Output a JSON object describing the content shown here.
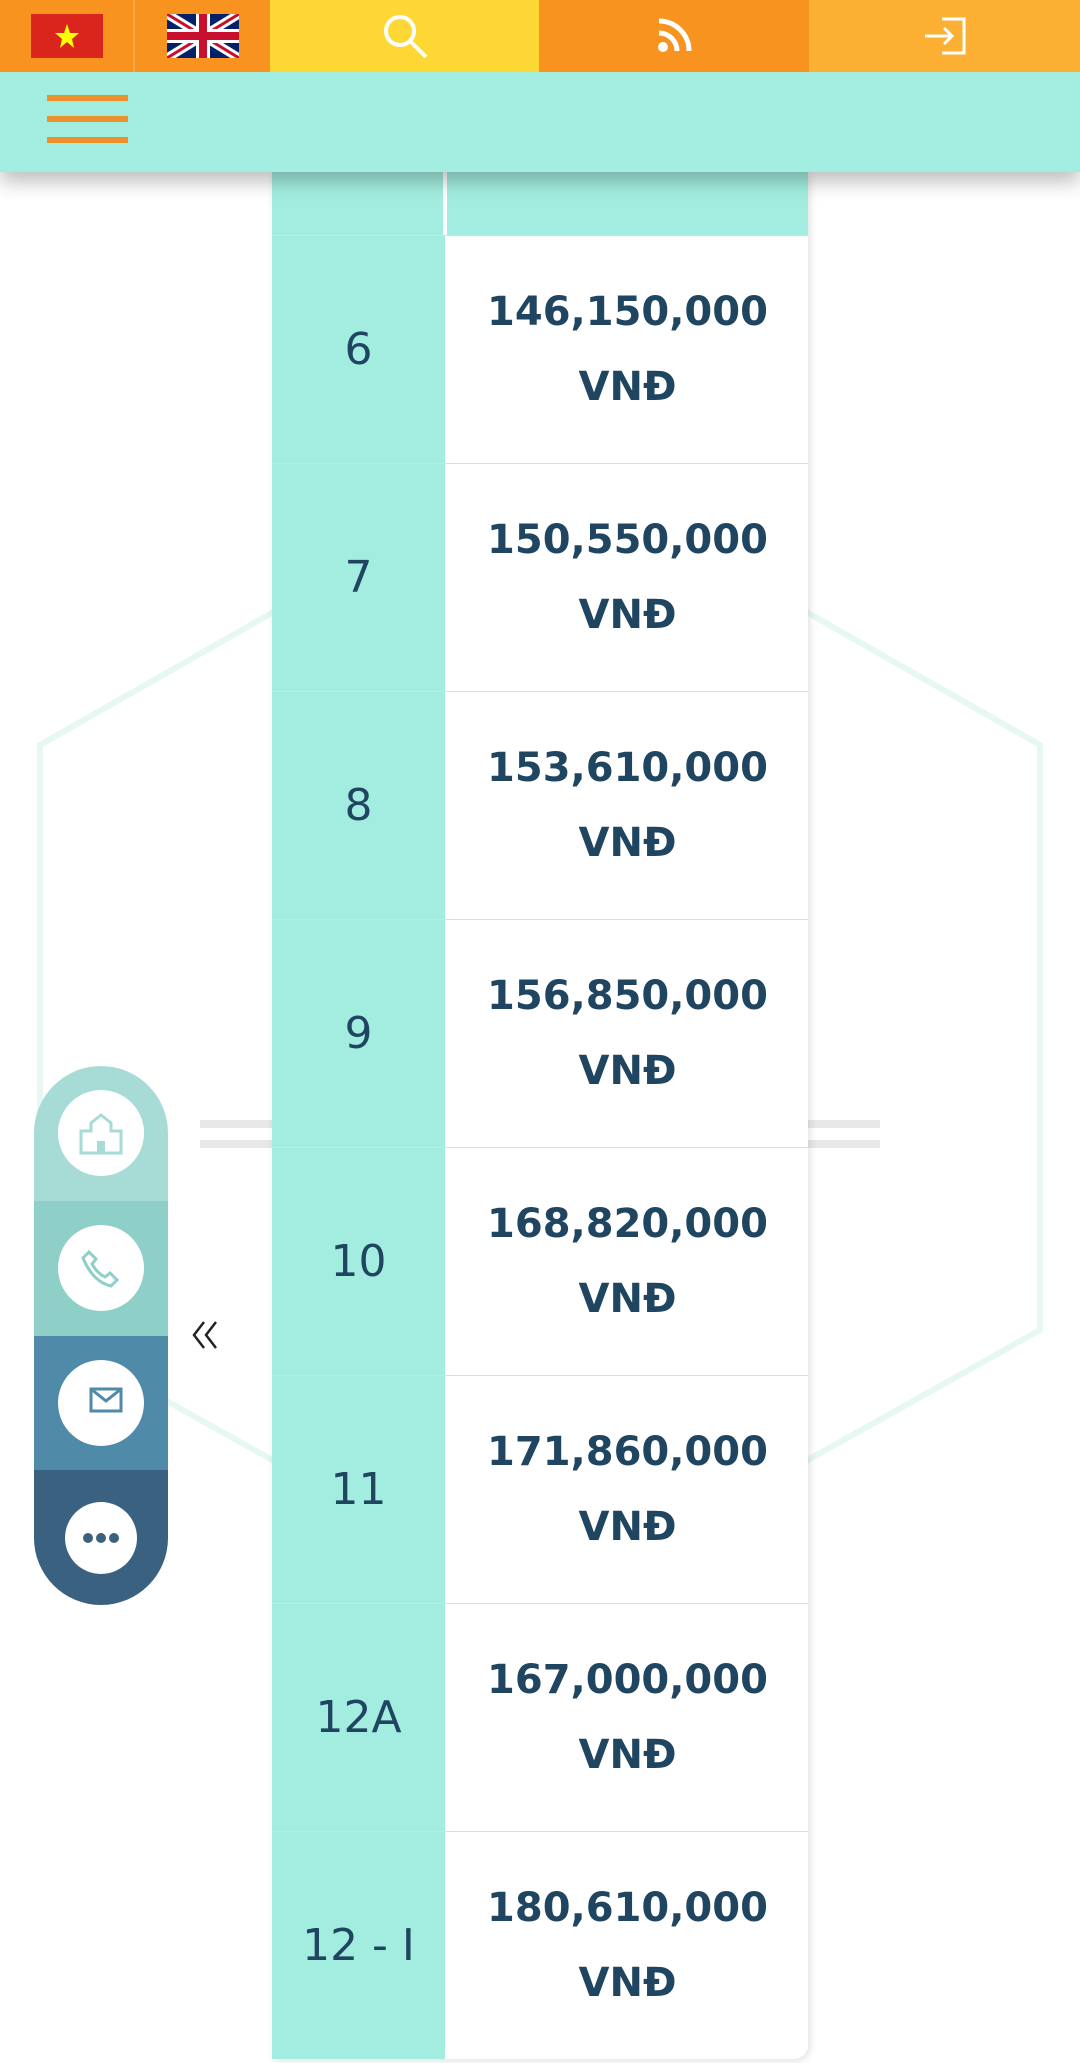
{
  "table": {
    "rows": [
      {
        "grade": "6",
        "fee": "146,150,000 VNĐ"
      },
      {
        "grade": "7",
        "fee": "150,550,000 VNĐ"
      },
      {
        "grade": "8",
        "fee": "153,610,000 VNĐ"
      },
      {
        "grade": "9",
        "fee": "156,850,000 VNĐ"
      },
      {
        "grade": "10",
        "fee": "168,820,000 VNĐ"
      },
      {
        "grade": "11",
        "fee": "171,860,000 VNĐ"
      },
      {
        "grade": "12A",
        "fee": "167,000,000 VNĐ"
      },
      {
        "grade": "12 - I",
        "fee": "180,610,000 VNĐ"
      }
    ]
  }
}
